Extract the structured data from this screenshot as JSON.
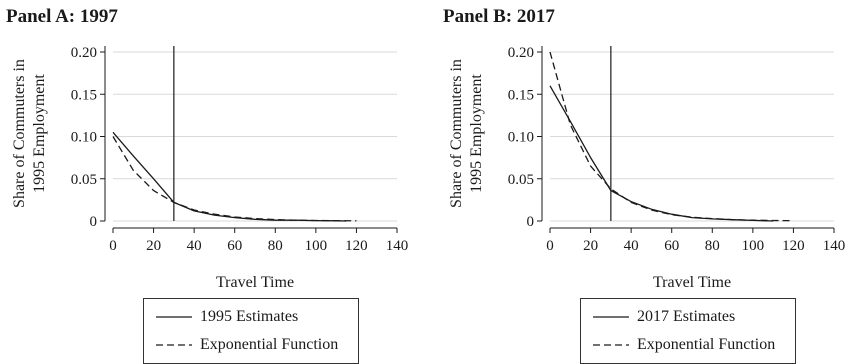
{
  "chart_data": [
    {
      "type": "line",
      "title": "Panel A: 1997",
      "xlabel": "Travel Time",
      "ylabel": [
        "Share of Commuters in",
        "1995 Employment"
      ],
      "xlim": [
        0,
        140
      ],
      "ylim": [
        0,
        0.2
      ],
      "xticks": [
        "0",
        "20",
        "40",
        "60",
        "80",
        "100",
        "120",
        "140"
      ],
      "yticks": [
        "0",
        "0.05",
        "0.10",
        "0.15",
        "0.20"
      ],
      "grid": "horizontal",
      "vline": 30,
      "legend_position": "bottom",
      "series": [
        {
          "name": "1995 Estimates",
          "style": "solid",
          "x": [
            0,
            10,
            20,
            30,
            40,
            50,
            60,
            70,
            80,
            90,
            100,
            110,
            115
          ],
          "y": [
            0.105,
            0.077,
            0.05,
            0.022,
            0.012,
            0.007,
            0.004,
            0.002,
            0.001,
            0.001,
            0.0005,
            0.0002,
            0.0
          ]
        },
        {
          "name": "Exponential Function",
          "style": "dashed",
          "x": [
            0,
            10,
            20,
            30,
            40,
            50,
            60,
            70,
            80,
            90,
            100,
            110,
            120
          ],
          "y": [
            0.1,
            0.06,
            0.036,
            0.022,
            0.013,
            0.008,
            0.0047,
            0.0028,
            0.0017,
            0.001,
            0.0006,
            0.0004,
            0.0002
          ]
        }
      ]
    },
    {
      "type": "line",
      "title": "Panel B: 2017",
      "xlabel": "Travel Time",
      "ylabel": [
        "Share of Commuters in",
        "1995 Employment"
      ],
      "xlim": [
        0,
        140
      ],
      "ylim": [
        0,
        0.2
      ],
      "xticks": [
        "0",
        "20",
        "40",
        "60",
        "80",
        "100",
        "120",
        "140"
      ],
      "yticks": [
        "0",
        "0.05",
        "0.10",
        "0.15",
        "0.20"
      ],
      "grid": "horizontal",
      "vline": 30,
      "legend_position": "bottom",
      "series": [
        {
          "name": "2017 Estimates",
          "style": "solid",
          "x": [
            0,
            10,
            20,
            30,
            40,
            50,
            60,
            70,
            80,
            90,
            100,
            110
          ],
          "y": [
            0.16,
            0.118,
            0.075,
            0.036,
            0.023,
            0.014,
            0.008,
            0.004,
            0.0025,
            0.0015,
            0.0007,
            0.0
          ]
        },
        {
          "name": "Exponential Function",
          "style": "dashed",
          "x": [
            0,
            10,
            20,
            30,
            40,
            50,
            60,
            70,
            80,
            90,
            100,
            110,
            120
          ],
          "y": [
            0.2,
            0.114,
            0.065,
            0.038,
            0.022,
            0.013,
            0.0075,
            0.0045,
            0.0028,
            0.0017,
            0.001,
            0.0006,
            0.0004
          ]
        }
      ]
    }
  ]
}
